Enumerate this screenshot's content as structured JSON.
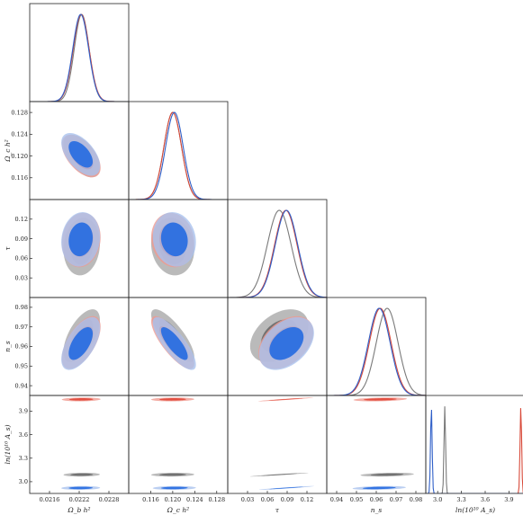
{
  "chart_data": {
    "type": "triangle-corner-plot",
    "parameters": [
      {
        "key": "omegab",
        "label": "Ω_b h²",
        "ticks": [
          "0.0216",
          "0.0222",
          "0.0228"
        ],
        "lim": [
          0.0212,
          0.0232
        ]
      },
      {
        "key": "omegac",
        "label": "Ω_c h²",
        "ticks": [
          "0.116",
          "0.120",
          "0.124",
          "0.128"
        ],
        "lim": [
          0.112,
          0.13
        ]
      },
      {
        "key": "tau",
        "label": "τ",
        "ticks": [
          "0.03",
          "0.06",
          "0.09",
          "0.12"
        ],
        "lim": [
          0.0,
          0.15
        ]
      },
      {
        "key": "ns",
        "label": "n_s",
        "ticks": [
          "0.94",
          "0.95",
          "0.96",
          "0.97",
          "0.98"
        ],
        "lim": [
          0.935,
          0.985
        ]
      },
      {
        "key": "lnAs",
        "label": "ln(10¹⁰ A_s)",
        "ticks": [
          "3.0",
          "3.3",
          "3.6",
          "3.9"
        ],
        "lim": [
          2.85,
          4.1
        ]
      }
    ],
    "series": [
      {
        "color": "#7a7a7a",
        "fill": "#a9a9a9",
        "inner": "#6e6e6e",
        "mean": {
          "omegab": 0.02225,
          "omegac": 0.12,
          "tau": 0.078,
          "ns": 0.9655,
          "lnAs": 3.09
        },
        "sigma": {
          "omegab": 0.00015,
          "omegac": 0.0016,
          "tau": 0.018,
          "ns": 0.0055,
          "lnAs": 0.01
        }
      },
      {
        "color": "#d84a3a",
        "fill": "#f09a90",
        "inner": "#e04b3c",
        "mean": {
          "omegab": 0.02224,
          "omegac": 0.12,
          "tau": 0.088,
          "ns": 0.962,
          "lnAs": 4.05
        },
        "sigma": {
          "omegab": 0.00016,
          "omegac": 0.0016,
          "tau": 0.017,
          "ns": 0.0055,
          "lnAs": 0.01
        }
      },
      {
        "color": "#2f5fc8",
        "fill": "#a9c2ee",
        "inner": "#2b6fe0",
        "mean": {
          "omegab": 0.02223,
          "omegac": 0.1203,
          "tau": 0.089,
          "ns": 0.9615,
          "lnAs": 2.92
        },
        "sigma": {
          "omegab": 0.00016,
          "omegac": 0.0016,
          "tau": 0.017,
          "ns": 0.0055,
          "lnAs": 0.01
        }
      }
    ],
    "correlations": {
      "omegab|omegac": -0.55,
      "omegab|tau": 0.1,
      "omegab|ns": 0.6,
      "omegab|lnAs": 0.1,
      "omegac|tau": -0.1,
      "omegac|ns": -0.8,
      "omegac|lnAs": 0.1,
      "tau|ns": 0.4,
      "tau|lnAs": 0.95,
      "ns|lnAs": 0.3
    },
    "grid": false,
    "legend": "none"
  }
}
